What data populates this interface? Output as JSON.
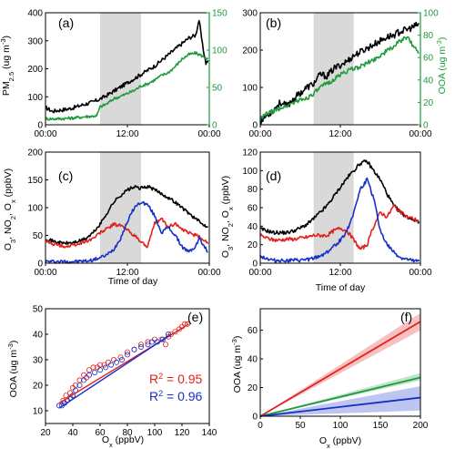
{
  "colors": {
    "black": "#000000",
    "green": "#1e9b3c",
    "red": "#e3211c",
    "blue": "#1630c8",
    "shade": "#d9d9d9"
  },
  "chart_data": [
    {
      "panel": "(a)",
      "type": "line",
      "x_ticks": [
        "00:00",
        "12:00",
        "00:00"
      ],
      "ylabel": "PM2.5 (ug m-3)",
      "ylabel_main": "PM",
      "ylabel_sub": "2.5",
      "ylabel_unit": " (ug m",
      "ylabel_sup": "-3",
      "ylabel_close": ")",
      "ylim": [
        0,
        400
      ],
      "y_ticks": [
        "0",
        "100",
        "200",
        "300",
        "400"
      ],
      "y2label": "OOA (ug m-3)",
      "y2lim": [
        0,
        150
      ],
      "y2_ticks": [
        "0",
        "50",
        "100",
        "150"
      ],
      "shaded_hours": [
        8,
        14
      ],
      "series": [
        {
          "axis": "left",
          "color": "black",
          "hours": [
            0,
            1,
            2,
            3,
            4,
            5,
            6,
            7,
            8,
            9,
            10,
            11,
            12,
            13,
            14,
            15,
            16,
            17,
            18,
            19,
            20,
            21,
            22,
            22.5,
            23,
            23.5,
            23.8
          ],
          "values": [
            62,
            48,
            52,
            55,
            60,
            68,
            75,
            82,
            92,
            105,
            120,
            135,
            150,
            165,
            180,
            195,
            210,
            230,
            250,
            270,
            290,
            310,
            320,
            375,
            285,
            220,
            230
          ]
        },
        {
          "axis": "right",
          "color": "green",
          "hours": [
            0,
            2,
            4,
            6,
            7.5,
            8,
            9,
            10,
            11,
            12,
            13,
            14,
            15,
            16,
            17,
            18,
            19,
            20,
            21,
            22,
            23,
            23.8
          ],
          "values": [
            8,
            8,
            9,
            11,
            12,
            24,
            28,
            35,
            38,
            42,
            46,
            52,
            55,
            60,
            66,
            70,
            78,
            88,
            94,
            96,
            92,
            88
          ]
        }
      ]
    },
    {
      "panel": "(b)",
      "type": "line",
      "x_ticks": [
        "00:00",
        "12:00",
        "00:00"
      ],
      "ylim": [
        0,
        300
      ],
      "y_ticks": [
        "0",
        "100",
        "200",
        "300"
      ],
      "y2label": "OOA (ug m-3)",
      "y2lim": [
        0,
        100
      ],
      "y2_ticks": [
        "0",
        "20",
        "40",
        "60",
        "80",
        "100"
      ],
      "shaded_hours": [
        8,
        14
      ],
      "series": [
        {
          "axis": "left",
          "color": "black",
          "hours": [
            0,
            1,
            2,
            3,
            4,
            5,
            6,
            7,
            8,
            9,
            10,
            11,
            12,
            13,
            14,
            15,
            16,
            17,
            18,
            19,
            20,
            21,
            22,
            23,
            23.8
          ],
          "values": [
            10,
            25,
            40,
            60,
            50,
            70,
            85,
            100,
            110,
            135,
            130,
            150,
            160,
            170,
            185,
            195,
            205,
            215,
            225,
            235,
            240,
            250,
            255,
            262,
            270
          ]
        },
        {
          "axis": "right",
          "color": "green",
          "hours": [
            0,
            1,
            2,
            3,
            4,
            5,
            6,
            7,
            8,
            9,
            10,
            11,
            12,
            13,
            14,
            15,
            16,
            17,
            18,
            19,
            20,
            21,
            22,
            23,
            23.8
          ],
          "values": [
            5,
            10,
            12,
            15,
            17,
            20,
            22,
            24,
            28,
            33,
            37,
            40,
            45,
            48,
            50,
            52,
            55,
            58,
            62,
            66,
            70,
            75,
            78,
            70,
            64
          ]
        }
      ]
    },
    {
      "panel": "(c)",
      "type": "line",
      "x_ticks": [
        "00:00",
        "12:00",
        "00:00"
      ],
      "xlabel": "Time of day",
      "ylabel": "O3, NO2, Ox (ppbV)",
      "ylim": [
        0,
        200
      ],
      "y_ticks": [
        "0",
        "50",
        "100",
        "150",
        "200"
      ],
      "shaded_hours": [
        8,
        14
      ],
      "series": [
        {
          "color": "black",
          "hours": [
            0,
            1,
            2,
            3,
            4,
            5,
            6,
            7,
            8,
            9,
            10,
            11,
            12,
            13,
            14,
            15,
            16,
            17,
            18,
            19,
            20,
            21,
            22,
            23,
            23.8
          ],
          "values": [
            45,
            40,
            37,
            36,
            37,
            40,
            45,
            55,
            70,
            90,
            110,
            122,
            132,
            137,
            135,
            138,
            132,
            125,
            118,
            110,
            100,
            90,
            80,
            70,
            66
          ]
        },
        {
          "color": "red",
          "hours": [
            0,
            1,
            2,
            3,
            4,
            5,
            6,
            7,
            8,
            9,
            10,
            11,
            12,
            13,
            14,
            15,
            16,
            17,
            18,
            19,
            20,
            21,
            22,
            23,
            23.8
          ],
          "values": [
            40,
            35,
            32,
            30,
            32,
            35,
            40,
            45,
            55,
            62,
            70,
            68,
            60,
            50,
            38,
            30,
            72,
            80,
            65,
            72,
            60,
            55,
            50,
            45,
            35
          ]
        },
        {
          "color": "blue",
          "hours": [
            0,
            2,
            4,
            6,
            7,
            8,
            9,
            10,
            11,
            12,
            13,
            14,
            15,
            16,
            17,
            18,
            19,
            20,
            21,
            22,
            22.5,
            23,
            23.8
          ],
          "values": [
            3,
            3,
            3,
            4,
            6,
            10,
            15,
            25,
            45,
            75,
            100,
            110,
            105,
            85,
            55,
            65,
            50,
            30,
            20,
            30,
            45,
            35,
            20
          ]
        }
      ]
    },
    {
      "panel": "(d)",
      "type": "line",
      "x_ticks": [
        "00:00",
        "12:00",
        "00:00"
      ],
      "xlabel": "Time of day",
      "ylabel": "O3, NO2, Ox (ppbV)",
      "ylim": [
        0,
        120
      ],
      "y_ticks": [
        "0",
        "20",
        "40",
        "60",
        "80",
        "100",
        "120"
      ],
      "shaded_hours": [
        8,
        14
      ],
      "series": [
        {
          "color": "black",
          "hours": [
            0,
            1,
            2,
            3,
            4,
            5,
            6,
            7,
            8,
            9,
            10,
            11,
            12,
            13,
            14,
            15,
            16,
            17,
            18,
            19,
            20,
            21,
            22,
            23,
            23.8
          ],
          "values": [
            37,
            35,
            33,
            33,
            33,
            35,
            38,
            42,
            48,
            55,
            62,
            72,
            82,
            92,
            100,
            108,
            110,
            100,
            90,
            75,
            62,
            55,
            50,
            47,
            45
          ]
        },
        {
          "color": "red",
          "hours": [
            0,
            1,
            2,
            3,
            4,
            5,
            6,
            7,
            8,
            9,
            10,
            11,
            12,
            13,
            14,
            15,
            16,
            17,
            18,
            19,
            20,
            21,
            22,
            23,
            23.8
          ],
          "values": [
            30,
            27,
            25,
            25,
            26,
            26,
            27,
            28,
            30,
            30,
            30,
            35,
            38,
            35,
            25,
            15,
            20,
            40,
            55,
            50,
            62,
            55,
            50,
            48,
            45
          ]
        },
        {
          "color": "blue",
          "hours": [
            0,
            1,
            2,
            3,
            4,
            5,
            6,
            7,
            8,
            9,
            10,
            11,
            12,
            13,
            14,
            15,
            16,
            17,
            18,
            19,
            20,
            21,
            22,
            23,
            23.8
          ],
          "values": [
            8,
            5,
            3,
            3,
            3,
            3,
            3,
            4,
            5,
            8,
            12,
            18,
            25,
            35,
            55,
            80,
            90,
            70,
            35,
            20,
            12,
            6,
            4,
            2,
            2
          ]
        }
      ]
    },
    {
      "panel": "(e)",
      "type": "scatter",
      "xlabel": "Ox (ppbV)",
      "ylabel": "OOA (ug m-3)",
      "xlim": [
        20,
        140
      ],
      "ylim": [
        5,
        50
      ],
      "x_ticks": [
        "20",
        "40",
        "60",
        "80",
        "100",
        "120",
        "140"
      ],
      "y_ticks": [
        "10",
        "20",
        "30",
        "40",
        "50"
      ],
      "annotations": [
        "R² = 0.95",
        "R² = 0.96"
      ],
      "series": [
        {
          "color": "red",
          "points": [
            [
              33,
              14
            ],
            [
              35,
              16
            ],
            [
              38,
              17
            ],
            [
              40,
              19
            ],
            [
              42,
              20
            ],
            [
              45,
              22
            ],
            [
              48,
              24
            ],
            [
              50,
              23
            ],
            [
              52,
              26
            ],
            [
              55,
              27
            ],
            [
              58,
              27
            ],
            [
              60,
              28
            ],
            [
              63,
              28
            ],
            [
              66,
              29
            ],
            [
              70,
              30
            ],
            [
              75,
              31
            ],
            [
              80,
              33
            ],
            [
              85,
              34
            ],
            [
              90,
              36
            ],
            [
              95,
              37
            ],
            [
              100,
              38
            ],
            [
              105,
              38
            ],
            [
              110,
              39
            ],
            [
              115,
              41
            ],
            [
              118,
              42
            ],
            [
              120,
              43
            ],
            [
              122,
              44
            ],
            [
              124,
              44
            ],
            [
              108,
              36
            ],
            [
              112,
              40
            ]
          ],
          "fit": [
            [
              30,
              13
            ],
            [
              125,
              44
            ]
          ]
        },
        {
          "color": "blue",
          "points": [
            [
              30,
              12
            ],
            [
              32,
              12
            ],
            [
              34,
              13
            ],
            [
              36,
              14
            ],
            [
              38,
              15
            ],
            [
              40,
              16
            ],
            [
              42,
              18
            ],
            [
              45,
              20
            ],
            [
              48,
              22
            ],
            [
              52,
              24
            ],
            [
              56,
              25
            ],
            [
              60,
              26
            ],
            [
              64,
              27
            ],
            [
              68,
              28
            ],
            [
              72,
              29
            ],
            [
              76,
              30
            ],
            [
              80,
              32
            ],
            [
              85,
              34
            ],
            [
              90,
              35
            ],
            [
              95,
              36
            ],
            [
              98,
              37
            ],
            [
              102,
              37
            ],
            [
              106,
              38
            ],
            [
              110,
              40
            ]
          ],
          "fit": [
            [
              30,
              11
            ],
            [
              112,
              40
            ]
          ]
        }
      ]
    },
    {
      "panel": "(f)",
      "type": "line",
      "xlabel": "Ox (ppbV)",
      "ylabel": "OOA (ug m-3)",
      "xlim": [
        0,
        200
      ],
      "ylim": [
        0,
        75
      ],
      "x_ticks": [
        "0",
        "50",
        "100",
        "150",
        "200"
      ],
      "y_ticks": [
        "0",
        "20",
        "40",
        "60"
      ],
      "series": [
        {
          "color": "red",
          "x": [
            0,
            200
          ],
          "y": [
            0,
            66
          ],
          "band_lo": [
            0,
            60
          ],
          "band_hi": [
            0,
            72
          ]
        },
        {
          "color": "green",
          "x": [
            0,
            200
          ],
          "y": [
            0,
            27
          ],
          "band_lo": [
            0,
            25
          ],
          "band_hi": [
            0,
            30
          ]
        },
        {
          "color": "blue",
          "x": [
            0,
            200
          ],
          "y": [
            0,
            13
          ],
          "band_lo": [
            0,
            4
          ],
          "band_hi": [
            0,
            21
          ]
        }
      ]
    }
  ]
}
